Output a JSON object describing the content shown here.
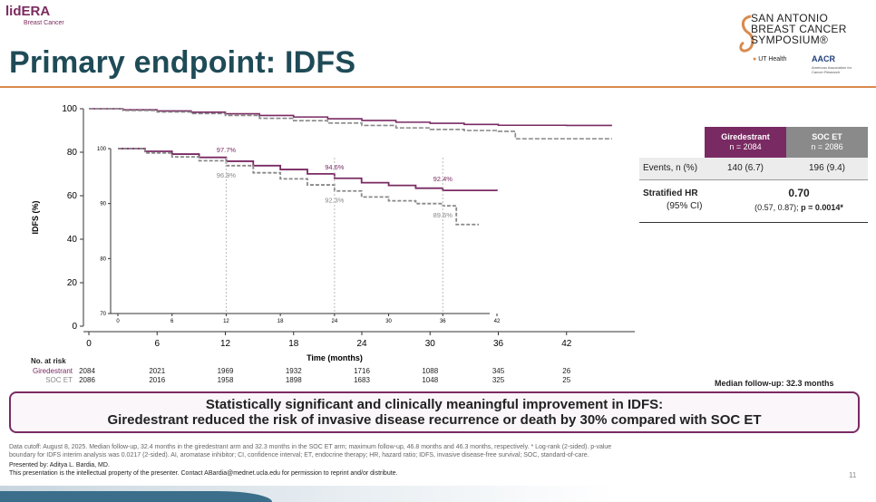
{
  "brand": {
    "logo_lid": "lid",
    "logo_era": "ERA",
    "logo_sub": "Breast Cancer",
    "sabcs_lines": [
      "SAN ANTONIO",
      "BREAST CANCER",
      "SYMPOSIUM®"
    ],
    "ut_health": "UT Health",
    "aacr": "AACR",
    "aacr_sub": "American Association for Cancer Research"
  },
  "slide": {
    "title": "Primary endpoint: IDFS",
    "page_number": "11"
  },
  "chart_data": {
    "type": "line",
    "title": "",
    "xlabel": "Time (months)",
    "ylabel": "IDFS (%)",
    "xlim": [
      0,
      48
    ],
    "ylim": [
      0,
      100
    ],
    "xticks": [
      0,
      6,
      12,
      18,
      24,
      30,
      36,
      42
    ],
    "yticks": [
      0,
      20,
      40,
      60,
      80,
      100
    ],
    "series": [
      {
        "name": "Giredestrant",
        "color": "#7a2a63",
        "x": [
          0,
          3,
          6,
          9,
          12,
          15,
          18,
          21,
          24,
          27,
          30,
          33,
          36,
          39,
          42,
          46
        ],
        "y": [
          100,
          99.5,
          99.0,
          98.4,
          97.7,
          96.9,
          96.2,
          95.4,
          94.6,
          93.8,
          93.3,
          92.8,
          92.4,
          92.4,
          92.3,
          92.3
        ]
      },
      {
        "name": "SOC ET",
        "color": "#888888",
        "x": [
          0,
          3,
          6,
          9,
          12,
          15,
          18,
          21,
          24,
          27,
          30,
          33,
          36,
          37.5,
          40,
          46
        ],
        "y": [
          100,
          99.2,
          98.5,
          97.8,
          96.9,
          95.6,
          94.5,
          93.4,
          92.3,
          91.2,
          90.5,
          90.0,
          89.6,
          86.2,
          86.2,
          86.2
        ]
      }
    ],
    "inset": {
      "ylim": [
        70,
        100
      ],
      "yticks": [
        70,
        80,
        90,
        100
      ],
      "xticks": [
        0,
        6,
        12,
        18,
        24,
        30,
        36,
        42
      ],
      "annotations": [
        {
          "x": 12,
          "giredestrant": "97.7%",
          "soc": "96.9%"
        },
        {
          "x": 24,
          "giredestrant": "94.6%",
          "soc": "92.3%"
        },
        {
          "x": 36,
          "giredestrant": "92.4%",
          "soc": "89.6%"
        }
      ]
    }
  },
  "risk_table": {
    "header": "No. at risk",
    "rows": [
      {
        "label": "Giredestrant",
        "color": "#7a2a63",
        "values": [
          "2084",
          "2021",
          "1969",
          "1932",
          "1716",
          "1088",
          "345",
          "26"
        ]
      },
      {
        "label": "SOC ET",
        "color": "#888888",
        "values": [
          "2086",
          "2016",
          "1958",
          "1898",
          "1683",
          "1048",
          "325",
          "25"
        ]
      }
    ]
  },
  "stats_table": {
    "col1_title": "Giredestrant",
    "col1_n": "n = 2084",
    "col2_title": "SOC ET",
    "col2_n": "n = 2086",
    "events_label": "Events, n (%)",
    "events_g": "140 (6.7)",
    "events_s": "196 (9.4)",
    "hr_label": "Stratified HR",
    "hr_ci_label": "(95% CI)",
    "hr_value": "0.70",
    "hr_ci": "(0.57, 0.87);",
    "hr_p": "p = 0.0014*"
  },
  "median_followup": "Median follow-up: 32.3 months",
  "banner": {
    "line1": "Statistically significant and clinically meaningful improvement in IDFS:",
    "line2": "Giredestrant reduced the risk of invasive disease recurrence or death by 30% compared with SOC ET"
  },
  "footnotes": {
    "line1": "Data cutoff: August 8, 2025. Median follow-up, 32.4 months in the giredestrant arm and 32.3 months in the SOC ET arm; maximum follow-up, 46.8 months and 46.3 months, respectively. * Log-rank (2-sided). p-value",
    "line2": "boundary for IDFS interim analysis was 0.0217 (2-sided). AI, aromatase inhibitor; CI, confidence interval; ET, endocrine therapy; HR, hazard ratio; IDFS, invasive disease-free survival; SOC, standard-of-care.",
    "presented": "Presented by: Aditya L. Bardia, MD.",
    "ip": "This presentation is the intellectual property of the presenter. Contact ABardia@mednet.ucla.edu for permission to reprint and/or distribute."
  }
}
